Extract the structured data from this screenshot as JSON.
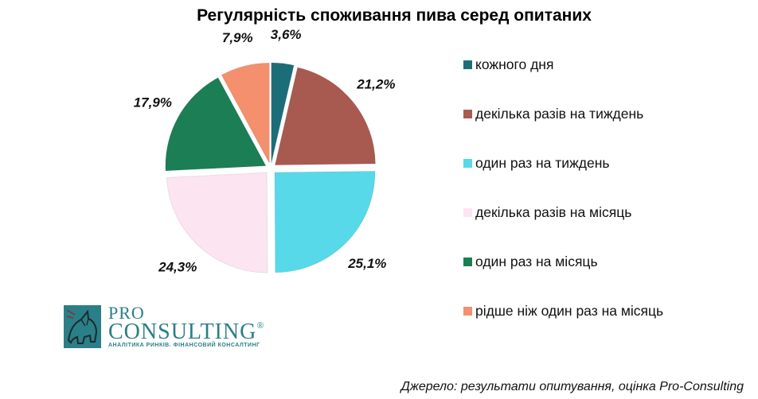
{
  "chart_data": {
    "type": "pie",
    "title": "Регулярність споживання пива серед опитаних",
    "categories": [
      "кожного дня",
      "декілька разів на тиждень",
      "один раз на тиждень",
      "декілька разів на місяць",
      "один раз на місяць",
      "рідше ніж один раз на місяць"
    ],
    "values": [
      3.6,
      21.2,
      25.1,
      24.3,
      17.9,
      7.9
    ],
    "value_labels": [
      "3,6%",
      "21,2%",
      "25,1%",
      "24,3%",
      "17,9%",
      "7,9%"
    ],
    "colors": [
      "#1b6e78",
      "#a85a50",
      "#57d9e9",
      "#fce4f1",
      "#1b7e55",
      "#f4906d"
    ],
    "exploded": true,
    "legend_position": "right"
  },
  "logo": {
    "line1": "PRO",
    "line2": "CONSULTING",
    "mark": "®",
    "tagline": "АНАЛІТИКА РИНКІВ. ФІНАНСОВИЙ КОНСАЛТИНГ",
    "color": "#2a7f88"
  },
  "source": "Джерело: результати опитування, оцінка Pro-Consulting"
}
